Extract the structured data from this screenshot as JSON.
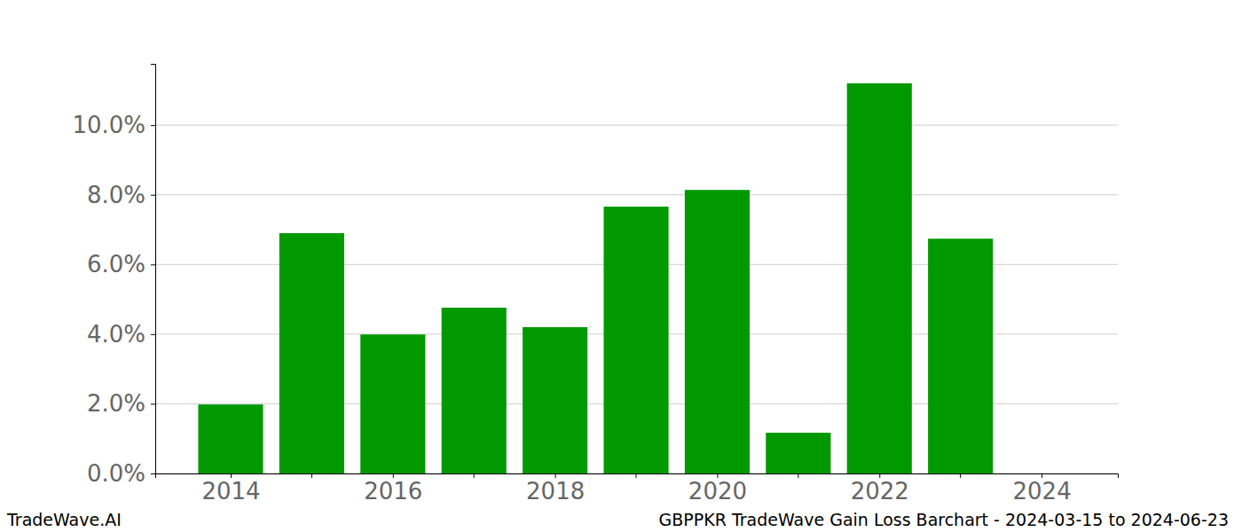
{
  "chart_data": {
    "type": "bar",
    "title": "GBPPKR TradeWave Gain Loss Barchart - 2024-03-15 to 2024-06-23",
    "annotations": [
      "TradeWave.AI"
    ],
    "x": [
      2014,
      2015,
      2016,
      2017,
      2018,
      2019,
      2020,
      2021,
      2022,
      2023
    ],
    "values": [
      1.98,
      6.9,
      3.99,
      4.76,
      4.2,
      7.66,
      8.14,
      1.17,
      11.2,
      6.74
    ],
    "color": "#009900",
    "xlim": [
      2013.07,
      2024.94
    ],
    "xticks": [
      2014,
      2016,
      2018,
      2020,
      2022,
      2024
    ],
    "ylim": [
      0,
      11.76
    ],
    "yticks": [
      {
        "value": 0,
        "label": "0.0%"
      },
      {
        "value": 2,
        "label": "2.0%"
      },
      {
        "value": 4,
        "label": "4.0%"
      },
      {
        "value": 6,
        "label": "6.0%"
      },
      {
        "value": 8,
        "label": "8.0%"
      },
      {
        "value": 10,
        "label": "10.0%"
      }
    ],
    "grid": true
  }
}
